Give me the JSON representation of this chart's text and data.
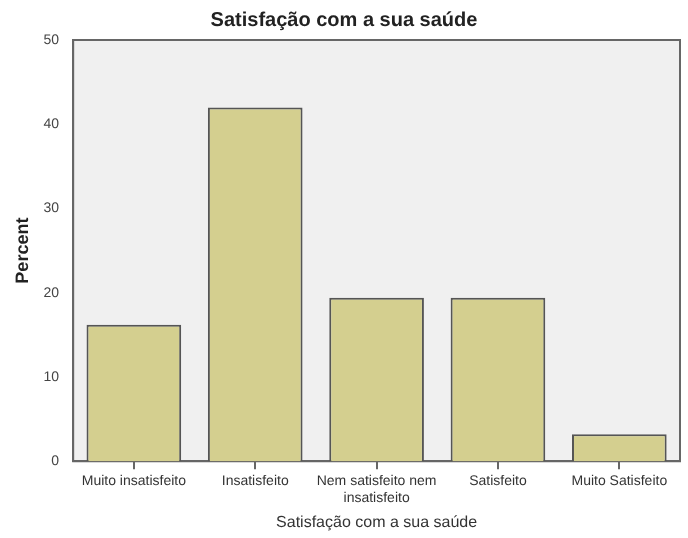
{
  "chart_data": {
    "type": "bar",
    "title": "Satisfação com a sua saúde",
    "xlabel": "Satisfação com a sua saúde",
    "ylabel": "Percent",
    "categories": [
      "Muito insatisfeito",
      "Insatisfeito",
      "Nem satisfeito nem insatisfeito",
      "Satisfeito",
      "Muito Satisfeito"
    ],
    "values": [
      16.2,
      42,
      19.4,
      19.4,
      3.2
    ],
    "color": "#d4cf8f",
    "ylim": [
      0,
      50
    ],
    "yticks": [
      0,
      10,
      20,
      30,
      40,
      50
    ],
    "grid": false,
    "legend": false
  }
}
